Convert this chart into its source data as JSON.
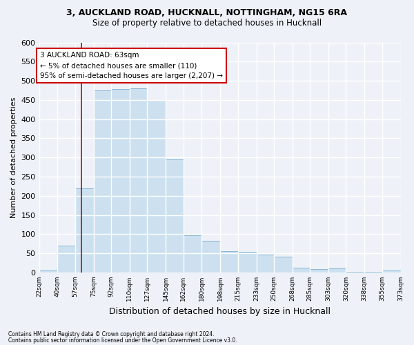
{
  "title1": "3, AUCKLAND ROAD, HUCKNALL, NOTTINGHAM, NG15 6RA",
  "title2": "Size of property relative to detached houses in Hucknall",
  "xlabel": "Distribution of detached houses by size in Hucknall",
  "ylabel": "Number of detached properties",
  "footnote1": "Contains HM Land Registry data © Crown copyright and database right 2024.",
  "footnote2": "Contains public sector information licensed under the Open Government Licence v3.0.",
  "annotation_line1": "3 AUCKLAND ROAD: 63sqm",
  "annotation_line2": "← 5% of detached houses are smaller (110)",
  "annotation_line3": "95% of semi-detached houses are larger (2,207) →",
  "bar_color": "#cce0f0",
  "bar_edge_color": "#7aaed0",
  "vline_color": "#cc0000",
  "vline_x": 63,
  "bin_edges": [
    22,
    40,
    57,
    75,
    92,
    110,
    127,
    145,
    162,
    180,
    198,
    215,
    233,
    250,
    268,
    285,
    303,
    320,
    338,
    355,
    373
  ],
  "bar_heights": [
    5,
    70,
    220,
    475,
    478,
    480,
    450,
    295,
    97,
    82,
    55,
    53,
    47,
    42,
    12,
    8,
    11,
    2,
    1,
    5
  ],
  "ylim": [
    0,
    600
  ],
  "yticks": [
    0,
    50,
    100,
    150,
    200,
    250,
    300,
    350,
    400,
    450,
    500,
    550,
    600
  ],
  "bg_color": "#eef2f8",
  "grid_color": "#ffffff",
  "title1_fontsize": 9,
  "title2_fontsize": 8.5,
  "ylabel_fontsize": 8,
  "xlabel_fontsize": 9
}
